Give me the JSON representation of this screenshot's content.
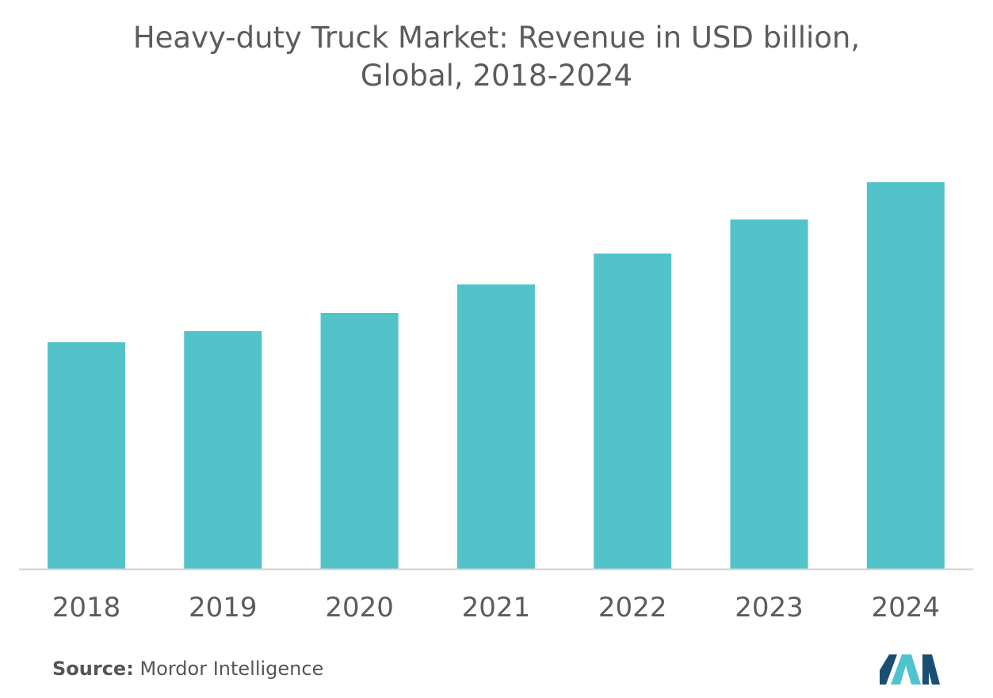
{
  "title_line1": "Heavy-duty Truck Market: Revenue in USD billion,",
  "title_line2": "Global, 2018-2024",
  "source_label": "Source:",
  "source_name": "Mordor Intelligence",
  "colors": {
    "bar": "#52c3c9",
    "text": "#5c5c5c",
    "axis": "#d0d0d0",
    "logo_dark": "#1a4e74",
    "logo_light": "#4fc3ce"
  },
  "icons": {
    "logo": "mordor-intelligence-logo"
  },
  "chart_data": {
    "type": "bar",
    "categories": [
      "2018",
      "2019",
      "2020",
      "2021",
      "2022",
      "2023",
      "2024"
    ],
    "values": [
      286,
      300,
      323,
      359,
      398,
      441,
      488
    ],
    "ylim": [
      0,
      520
    ],
    "grid": false,
    "xlabel": "",
    "ylabel": ""
  }
}
